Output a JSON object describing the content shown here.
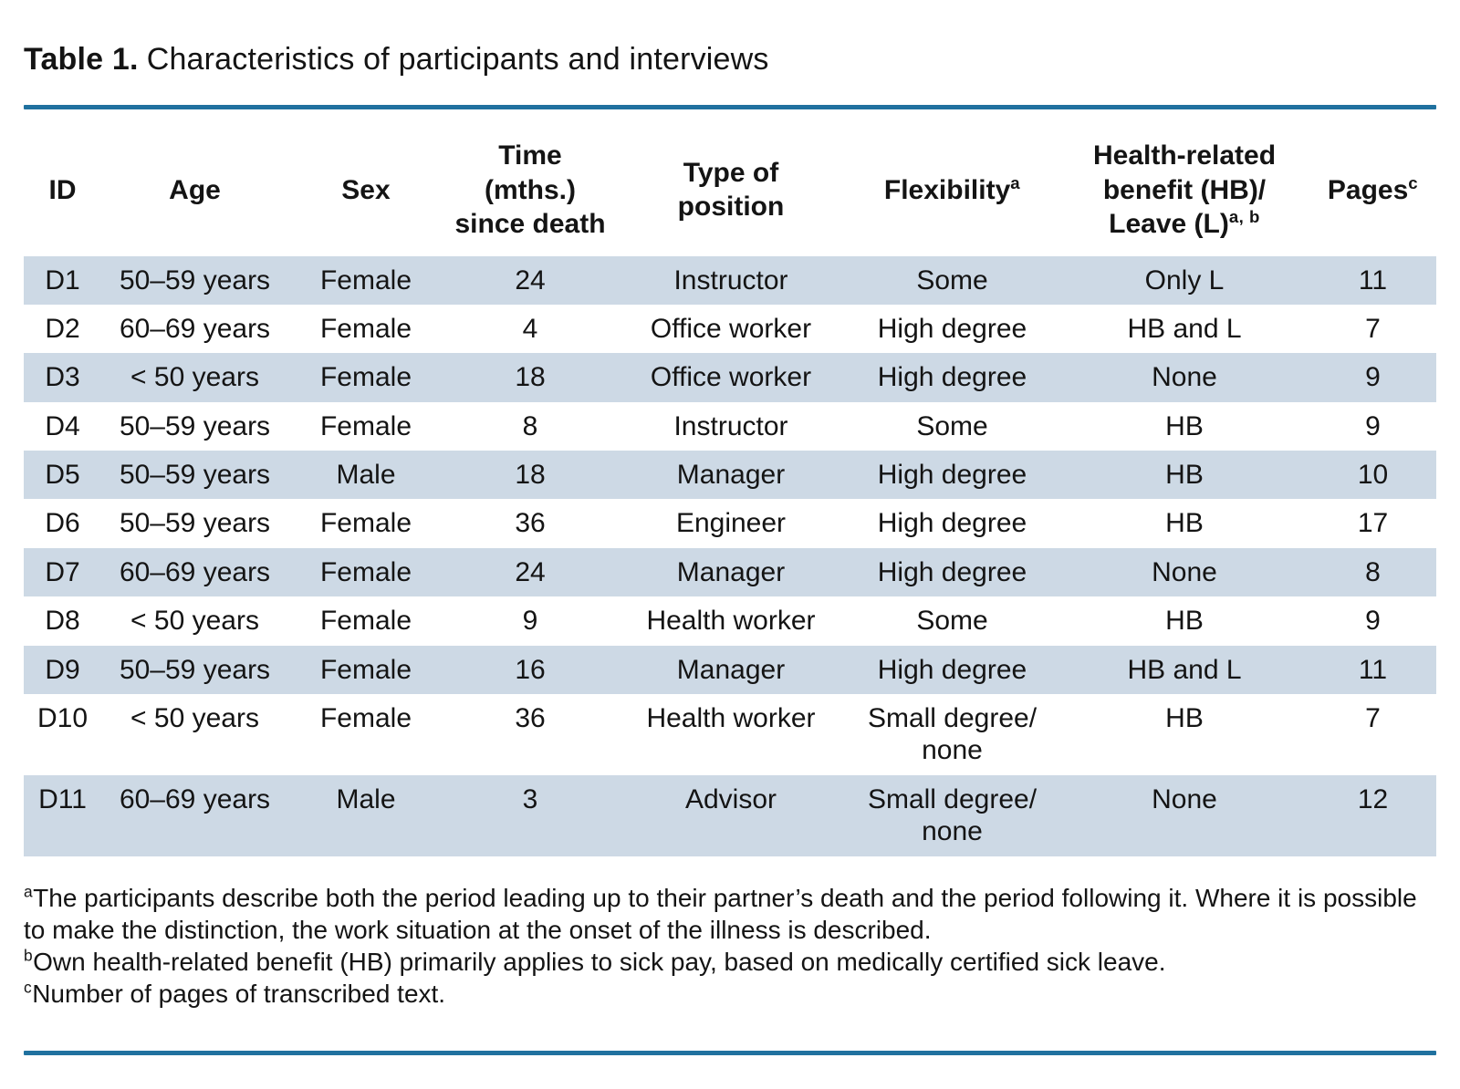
{
  "title": {
    "label": "Table 1.",
    "text": "Characteristics of participants and interviews"
  },
  "table": {
    "columns": [
      {
        "label": "ID",
        "sup": ""
      },
      {
        "label": "Age",
        "sup": ""
      },
      {
        "label": "Sex",
        "sup": ""
      },
      {
        "label": "Time\n(mths.)\nsince death",
        "sup": ""
      },
      {
        "label": "Type of\nposition",
        "sup": ""
      },
      {
        "label": "Flexibility",
        "sup": "a"
      },
      {
        "label": "Health-related\nbenefit (HB)/\nLeave (L)",
        "sup": "a, b"
      },
      {
        "label": "Pages",
        "sup": "c"
      }
    ],
    "rows": [
      {
        "id": "D1",
        "age": "50–59 years",
        "sex": "Female",
        "time": "24",
        "position": "Instructor",
        "flexibility": "Some",
        "benefit": "Only L",
        "pages": "11"
      },
      {
        "id": "D2",
        "age": "60–69 years",
        "sex": "Female",
        "time": "4",
        "position": "Office worker",
        "flexibility": "High degree",
        "benefit": "HB and L",
        "pages": "7"
      },
      {
        "id": "D3",
        "age": "< 50 years",
        "sex": "Female",
        "time": "18",
        "position": "Office worker",
        "flexibility": "High degree",
        "benefit": "None",
        "pages": "9"
      },
      {
        "id": "D4",
        "age": "50–59 years",
        "sex": "Female",
        "time": "8",
        "position": "Instructor",
        "flexibility": "Some",
        "benefit": "HB",
        "pages": "9"
      },
      {
        "id": "D5",
        "age": "50–59 years",
        "sex": "Male",
        "time": "18",
        "position": "Manager",
        "flexibility": "High degree",
        "benefit": "HB",
        "pages": "10"
      },
      {
        "id": "D6",
        "age": "50–59 years",
        "sex": "Female",
        "time": "36",
        "position": "Engineer",
        "flexibility": "High degree",
        "benefit": "HB",
        "pages": "17"
      },
      {
        "id": "D7",
        "age": "60–69 years",
        "sex": "Female",
        "time": "24",
        "position": "Manager",
        "flexibility": "High degree",
        "benefit": "None",
        "pages": "8"
      },
      {
        "id": "D8",
        "age": "< 50 years",
        "sex": "Female",
        "time": "9",
        "position": "Health worker",
        "flexibility": "Some",
        "benefit": "HB",
        "pages": "9"
      },
      {
        "id": "D9",
        "age": "50–59 years",
        "sex": "Female",
        "time": "16",
        "position": "Manager",
        "flexibility": "High degree",
        "benefit": "HB and L",
        "pages": "11"
      },
      {
        "id": "D10",
        "age": "< 50 years",
        "sex": "Female",
        "time": "36",
        "position": "Health worker",
        "flexibility": "Small degree/\nnone",
        "benefit": "HB",
        "pages": "7"
      },
      {
        "id": "D11",
        "age": "60–69 years",
        "sex": "Male",
        "time": "3",
        "position": "Advisor",
        "flexibility": "Small degree/\nnone",
        "benefit": "None",
        "pages": "12"
      }
    ]
  },
  "footnotes": [
    {
      "marker": "a",
      "text": "The participants describe both the period leading up to their partner’s death and the period following it. Where it is possible to make the distinction, the work situation at the onset of the illness is described."
    },
    {
      "marker": "b",
      "text": "Own health-related benefit (HB) primarily applies to sick pay, based on medically certified sick leave."
    },
    {
      "marker": "c",
      "text": "Number of pages of transcribed text."
    }
  ],
  "colors": {
    "accent_rule": "#20719f",
    "row_shade": "#cdd9e5"
  }
}
